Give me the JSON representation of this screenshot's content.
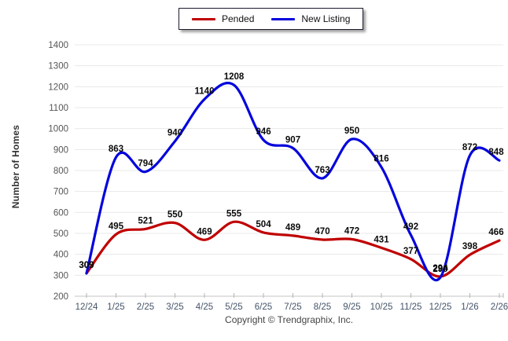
{
  "legend": {
    "items": [
      {
        "label": "Pended",
        "color": "#c00000"
      },
      {
        "label": "New Listing",
        "color": "#0404dd"
      }
    ]
  },
  "footer": {
    "copyright": "Copyright © Trendgraphix, Inc."
  },
  "chart_data": {
    "type": "line",
    "title": "",
    "xlabel": "",
    "ylabel": "Number of Homes",
    "categories": [
      "12/24",
      "1/25",
      "2/25",
      "3/25",
      "4/25",
      "5/25",
      "6/25",
      "7/25",
      "8/25",
      "9/25",
      "10/25",
      "11/25",
      "12/25",
      "1/26",
      "2/26"
    ],
    "series": [
      {
        "name": "Pended",
        "color": "#c00000",
        "values": [
          309,
          495,
          521,
          550,
          469,
          555,
          504,
          489,
          470,
          472,
          431,
          377,
          294,
          398,
          466
        ]
      },
      {
        "name": "New Listing",
        "color": "#0404dd",
        "values": [
          309,
          863,
          794,
          940,
          1140,
          1208,
          946,
          907,
          763,
          950,
          816,
          492,
          290,
          872,
          848
        ]
      }
    ],
    "ylim": [
      200,
      1400
    ],
    "ytick_step": 100,
    "grid": true,
    "legend_position": "top-center",
    "data_labels": true
  }
}
